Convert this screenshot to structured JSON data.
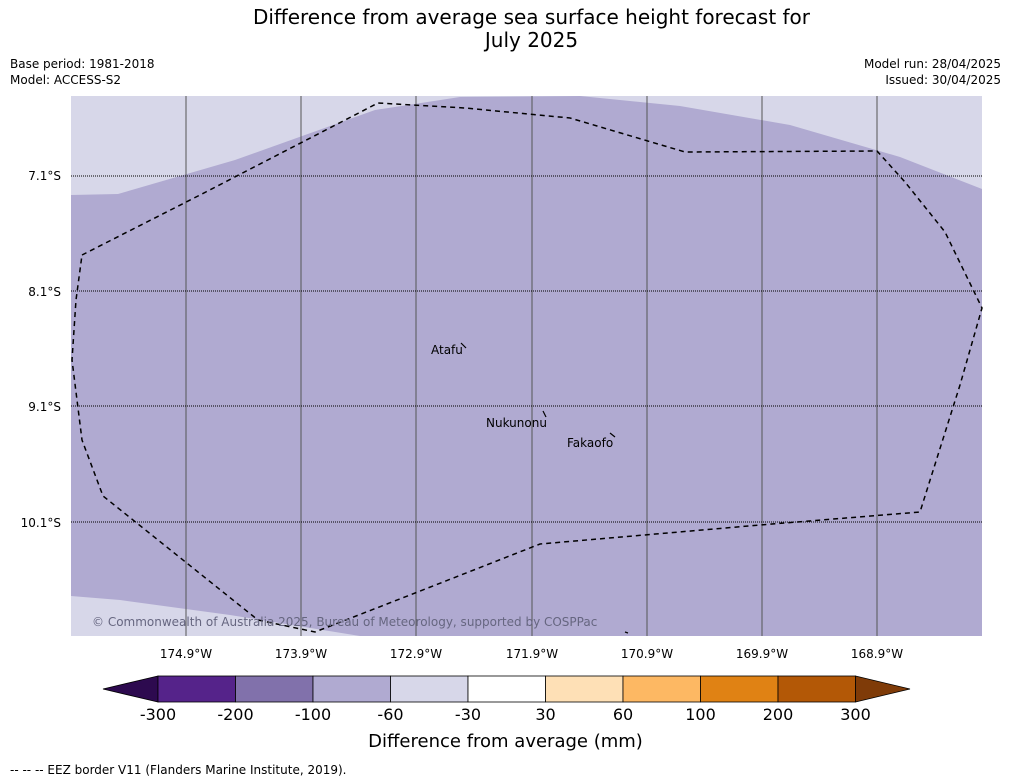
{
  "title": {
    "line1": "Difference from average sea surface height forecast for",
    "line2": "July 2025"
  },
  "meta": {
    "base_period": "Base period: 1981-2018",
    "model": "Model: ACCESS-S2",
    "model_run": "Model run: 28/04/2025",
    "issued": "Issued: 30/04/2025"
  },
  "map": {
    "latitude_labels": [
      "7.1°S",
      "8.1°S",
      "9.1°S",
      "10.1°S"
    ],
    "longitude_labels": [
      "174.9°W",
      "173.9°W",
      "172.9°W",
      "171.9°W",
      "170.9°W",
      "169.9°W",
      "168.9°W"
    ],
    "places": [
      "Atafu",
      "Nukunonu",
      "Fakaofo"
    ],
    "copyright": "© Commonwealth of Australia 2025, Bureau of Meteorology, supported by COSPPac",
    "colors": {
      "background_class": "#d7d7e9",
      "main_class": "#b0aad1",
      "grid": "#555555",
      "eez": "#000000"
    }
  },
  "colorbar": {
    "label": "Difference from average (mm)",
    "ticks": [
      "-300",
      "-200",
      "-100",
      "-60",
      "-30",
      "30",
      "60",
      "100",
      "200",
      "300"
    ],
    "colors": [
      "#2d0a4f",
      "#55238a",
      "#8171ab",
      "#b0aad1",
      "#d7d7e9",
      "#ffffff",
      "#fee0b6",
      "#fdb863",
      "#e08214",
      "#b35806",
      "#7f3b08"
    ]
  },
  "footer": "--  --  -- EEZ border V11 (Flanders Marine Institute, 2019)."
}
